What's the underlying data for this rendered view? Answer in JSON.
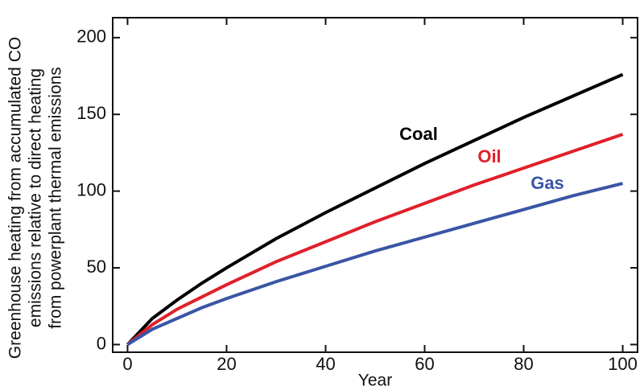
{
  "chart_data": {
    "type": "line",
    "y_label_lines": [
      "Greenhouse heating from accumulated CO",
      "emissions relative to direct heating",
      "from powerplant thermal emissions"
    ],
    "x_label": "Year",
    "x": [
      0,
      5,
      10,
      15,
      20,
      30,
      40,
      50,
      60,
      70,
      80,
      90,
      100
    ],
    "series": [
      {
        "name": "Coal",
        "color": "#000000",
        "values": [
          0,
          17,
          29,
          40,
          50,
          69,
          86,
          102,
          118,
          133,
          148,
          162,
          176
        ]
      },
      {
        "name": "Oil",
        "color": "#e0202a",
        "values": [
          0,
          13,
          23,
          31,
          39,
          54,
          67,
          80,
          92,
          104,
          115,
          126,
          137
        ]
      },
      {
        "name": "Gas",
        "color": "#3a55a4",
        "values": [
          0,
          10,
          17,
          24,
          30,
          41,
          51,
          61,
          70,
          79,
          88,
          97,
          105
        ]
      }
    ],
    "xlim": [
      -3,
      103
    ],
    "xticks": [
      0,
      20,
      40,
      60,
      80,
      100
    ],
    "ylim": [
      -5,
      213
    ],
    "yticks": [
      0,
      50,
      100,
      150,
      200
    ]
  }
}
